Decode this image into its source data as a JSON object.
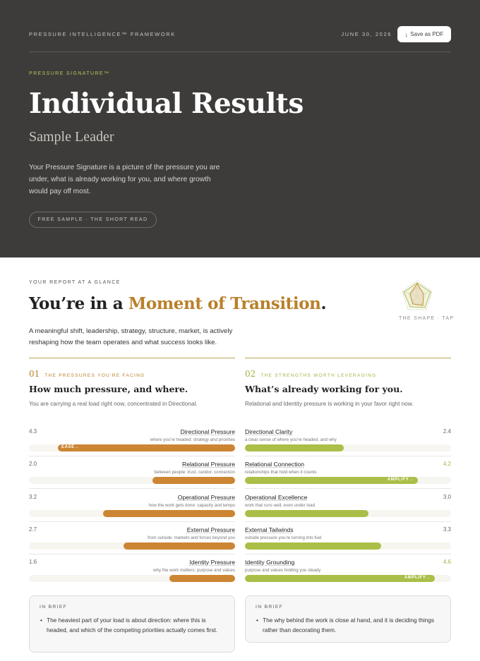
{
  "header": {
    "framework": "PRESSURE INTELLIGENCE™ FRAMEWORK",
    "date": "JUNE 30, 2026",
    "pdf_icon": "download-arrow-icon",
    "pdf_label": "Save as PDF",
    "eyebrow": "PRESSURE SIGNATURE™",
    "title": "Individual Results",
    "subtitle": "Sample Leader",
    "intro": "Your Pressure Signature is a picture of the pressure you are under, what is already working for you, and where growth would pay off most.",
    "pill": "FREE SAMPLE · THE SHORT READ"
  },
  "glance": {
    "label": "YOUR REPORT AT A GLANCE",
    "headline_prefix": "You’re in a ",
    "headline_accent": "Moment of Transition",
    "headline_suffix": ".",
    "lead": "A meaningful shift, leadership, strategy, structure, market, is actively reshaping how the team operates and what success looks like.",
    "shape_label": "THE SHAPE · TAP",
    "shape_icon": "radar-shape-icon"
  },
  "pressures": {
    "number": "01",
    "eyebrow": "THE PRESSURES YOU’RE FACING",
    "title": "How much pressure, and where.",
    "subtitle": "You are carrying a real load right now, concentrated in Directional.",
    "scale_max": 5,
    "items": [
      {
        "score": "4.3",
        "value": 4.3,
        "name": "Directional Pressure",
        "desc": "where you’re headed: strategy and priorities",
        "tag": "EASE→"
      },
      {
        "score": "2.0",
        "value": 2.0,
        "name": "Relational Pressure",
        "desc": "between people: trust, candor, connection",
        "tag": ""
      },
      {
        "score": "3.2",
        "value": 3.2,
        "name": "Operational Pressure",
        "desc": "how the work gets done: capacity and tempo",
        "tag": ""
      },
      {
        "score": "2.7",
        "value": 2.7,
        "name": "External Pressure",
        "desc": "from outside: markets and forces beyond you",
        "tag": ""
      },
      {
        "score": "1.6",
        "value": 1.6,
        "name": "Identity Pressure",
        "desc": "why the work matters: purpose and values",
        "tag": ""
      }
    ]
  },
  "strengths": {
    "number": "02",
    "eyebrow": "THE STRENGTHS WORTH LEVERAGING",
    "title": "What’s already working for you.",
    "subtitle": "Relational and Identity pressure is working in your favor right now.",
    "scale_max": 5,
    "items": [
      {
        "score": "2.4",
        "value": 2.4,
        "name": "Directional Clarity",
        "desc": "a clear sense of where you’re headed, and why",
        "tag": "",
        "strong": false
      },
      {
        "score": "4.2",
        "value": 4.2,
        "name": "Relational Connection",
        "desc": "relationships that hold when it counts",
        "tag": "AMPLIFY→",
        "strong": true
      },
      {
        "score": "3.0",
        "value": 3.0,
        "name": "Operational Excellence",
        "desc": "work that runs well, even under load",
        "tag": "",
        "strong": false
      },
      {
        "score": "3.3",
        "value": 3.3,
        "name": "External Tailwinds",
        "desc": "outside pressure you’re turning into fuel",
        "tag": "",
        "strong": false
      },
      {
        "score": "4.6",
        "value": 4.6,
        "name": "Identity Grounding",
        "desc": "purpose and values holding you steady",
        "tag": "AMPLIFY→",
        "strong": true
      }
    ]
  },
  "brief_left": {
    "label": "IN BRIEF",
    "items": [
      "The heaviest part of your load is about direction: where this is headed, and which of the competing priorities actually comes first."
    ]
  },
  "brief_right": {
    "label": "IN BRIEF",
    "items": [
      "The why behind the work is close at hand, and it is deciding things rather than decorating them."
    ]
  },
  "colors": {
    "hero_bg": "#3d3c3a",
    "pressure_accent": "#cc8533",
    "strength_accent": "#a9bf48",
    "headline_accent": "#b9802a"
  }
}
